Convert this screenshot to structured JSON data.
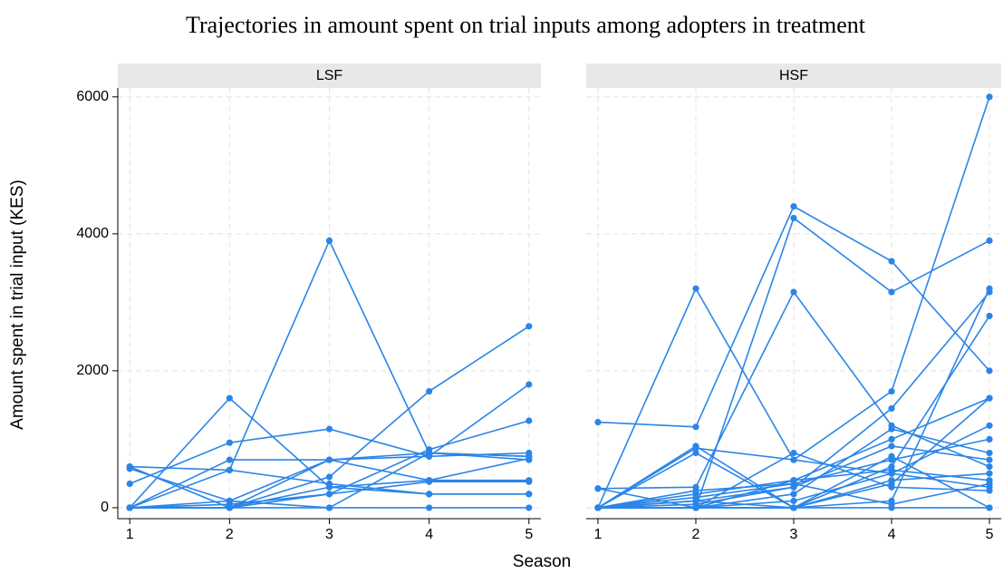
{
  "chart_data": {
    "type": "line",
    "title": "Trajectories in amount spent on trial inputs among adopters in treatment",
    "xlabel": "Season",
    "ylabel": "Amount spent in trial input (KES)",
    "x": [
      1,
      2,
      3,
      4,
      5
    ],
    "xlim": [
      0.88,
      5.12
    ],
    "xticks": [
      1,
      2,
      3,
      4,
      5
    ],
    "ylim": [
      -160,
      6130
    ],
    "yticks": [
      0,
      2000,
      4000,
      6000
    ],
    "grid": true,
    "color": "#2a85e8",
    "panels": [
      {
        "name": "LSF",
        "series": [
          {
            "values": [
              600,
              550,
              3900,
              800,
              700
            ]
          },
          {
            "values": [
              0,
              1600,
              300,
              200,
              200
            ]
          },
          {
            "values": [
              350,
              950,
              1150,
              750,
              1800
            ]
          },
          {
            "values": [
              0,
              0,
              450,
              1700,
              2650
            ]
          },
          {
            "values": [
              570,
              100,
              700,
              800,
              750
            ]
          },
          {
            "values": [
              0,
              700,
              700,
              400,
              400
            ]
          },
          {
            "values": [
              0,
              50,
              200,
              850,
              1270
            ]
          },
          {
            "values": [
              0,
              0,
              0,
              0,
              0
            ]
          },
          {
            "values": [
              0,
              550,
              350,
              200,
              200
            ]
          },
          {
            "values": [
              0,
              100,
              0,
              800,
              750
            ]
          },
          {
            "values": [
              0,
              0,
              700,
              750,
              800
            ]
          },
          {
            "values": [
              600,
              0,
              200,
              380,
              380
            ]
          },
          {
            "values": [
              0,
              0,
              300,
              400,
              720
            ]
          }
        ]
      },
      {
        "name": "HSF",
        "series": [
          {
            "values": [
              1250,
              1180,
              4400,
              3600,
              2000
            ]
          },
          {
            "values": [
              0,
              3200,
              700,
              500,
              300
            ]
          },
          {
            "values": [
              0,
              0,
              4230,
              3150,
              3900
            ]
          },
          {
            "values": [
              280,
              300,
              3150,
              1200,
              600
            ]
          },
          {
            "values": [
              0,
              870,
              700,
              1700,
              6000
            ]
          },
          {
            "values": [
              0,
              900,
              0,
              100,
              3200
            ]
          },
          {
            "values": [
              0,
              100,
              300,
              1450,
              3150
            ]
          },
          {
            "values": [
              0,
              0,
              0,
              600,
              2800
            ]
          },
          {
            "values": [
              0,
              200,
              400,
              1000,
              1600
            ]
          },
          {
            "values": [
              0,
              0,
              100,
              500,
              1200
            ]
          },
          {
            "values": [
              0,
              150,
              350,
              700,
              1000
            ]
          },
          {
            "values": [
              0,
              0,
              200,
              1150,
              800
            ]
          },
          {
            "values": [
              0,
              50,
              300,
              900,
              700
            ]
          },
          {
            "values": [
              0,
              0,
              0,
              400,
              500
            ]
          },
          {
            "values": [
              0,
              250,
              350,
              50,
              350
            ]
          },
          {
            "values": [
              0,
              0,
              0,
              0,
              0
            ]
          },
          {
            "values": [
              280,
              0,
              800,
              300,
              250
            ]
          },
          {
            "values": [
              0,
              800,
              0,
              750,
              0
            ]
          },
          {
            "values": [
              0,
              0,
              400,
              550,
              400
            ]
          },
          {
            "values": [
              0,
              100,
              0,
              350,
              1600
            ]
          }
        ]
      }
    ]
  }
}
